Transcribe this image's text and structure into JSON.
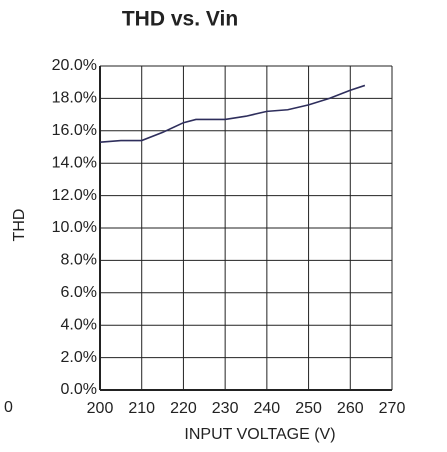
{
  "chart_data": {
    "type": "line",
    "title": "THD vs. Vin",
    "xlabel": "INPUT VOLTAGE (V)",
    "ylabel": "THD",
    "annotation": "0",
    "series": [
      {
        "name": "THD",
        "color": "#2e2e5c",
        "x": [
          200,
          205,
          210,
          215,
          220,
          223,
          230,
          235,
          240,
          245,
          250,
          255,
          260,
          263.5
        ],
        "values": [
          15.3,
          15.4,
          15.4,
          15.9,
          16.5,
          16.7,
          16.7,
          16.9,
          17.2,
          17.3,
          17.6,
          18.0,
          18.5,
          18.8
        ]
      }
    ],
    "xlim": [
      200,
      270
    ],
    "xticks": [
      200,
      210,
      220,
      230,
      240,
      250,
      260,
      270
    ],
    "ylim": [
      0,
      20
    ],
    "yticks": [
      {
        "value": 0,
        "label": "0.0%"
      },
      {
        "value": 2,
        "label": "2.0%"
      },
      {
        "value": 4,
        "label": "4.0%"
      },
      {
        "value": 6,
        "label": "6.0%"
      },
      {
        "value": 8,
        "label": "8.0%"
      },
      {
        "value": 10,
        "label": "10.0%"
      },
      {
        "value": 12,
        "label": "12.0%"
      },
      {
        "value": 14,
        "label": "14.0%"
      },
      {
        "value": 16,
        "label": "16.0%"
      },
      {
        "value": 18,
        "label": "18.0%"
      },
      {
        "value": 20,
        "label": "20.0%"
      }
    ],
    "grid": true
  }
}
